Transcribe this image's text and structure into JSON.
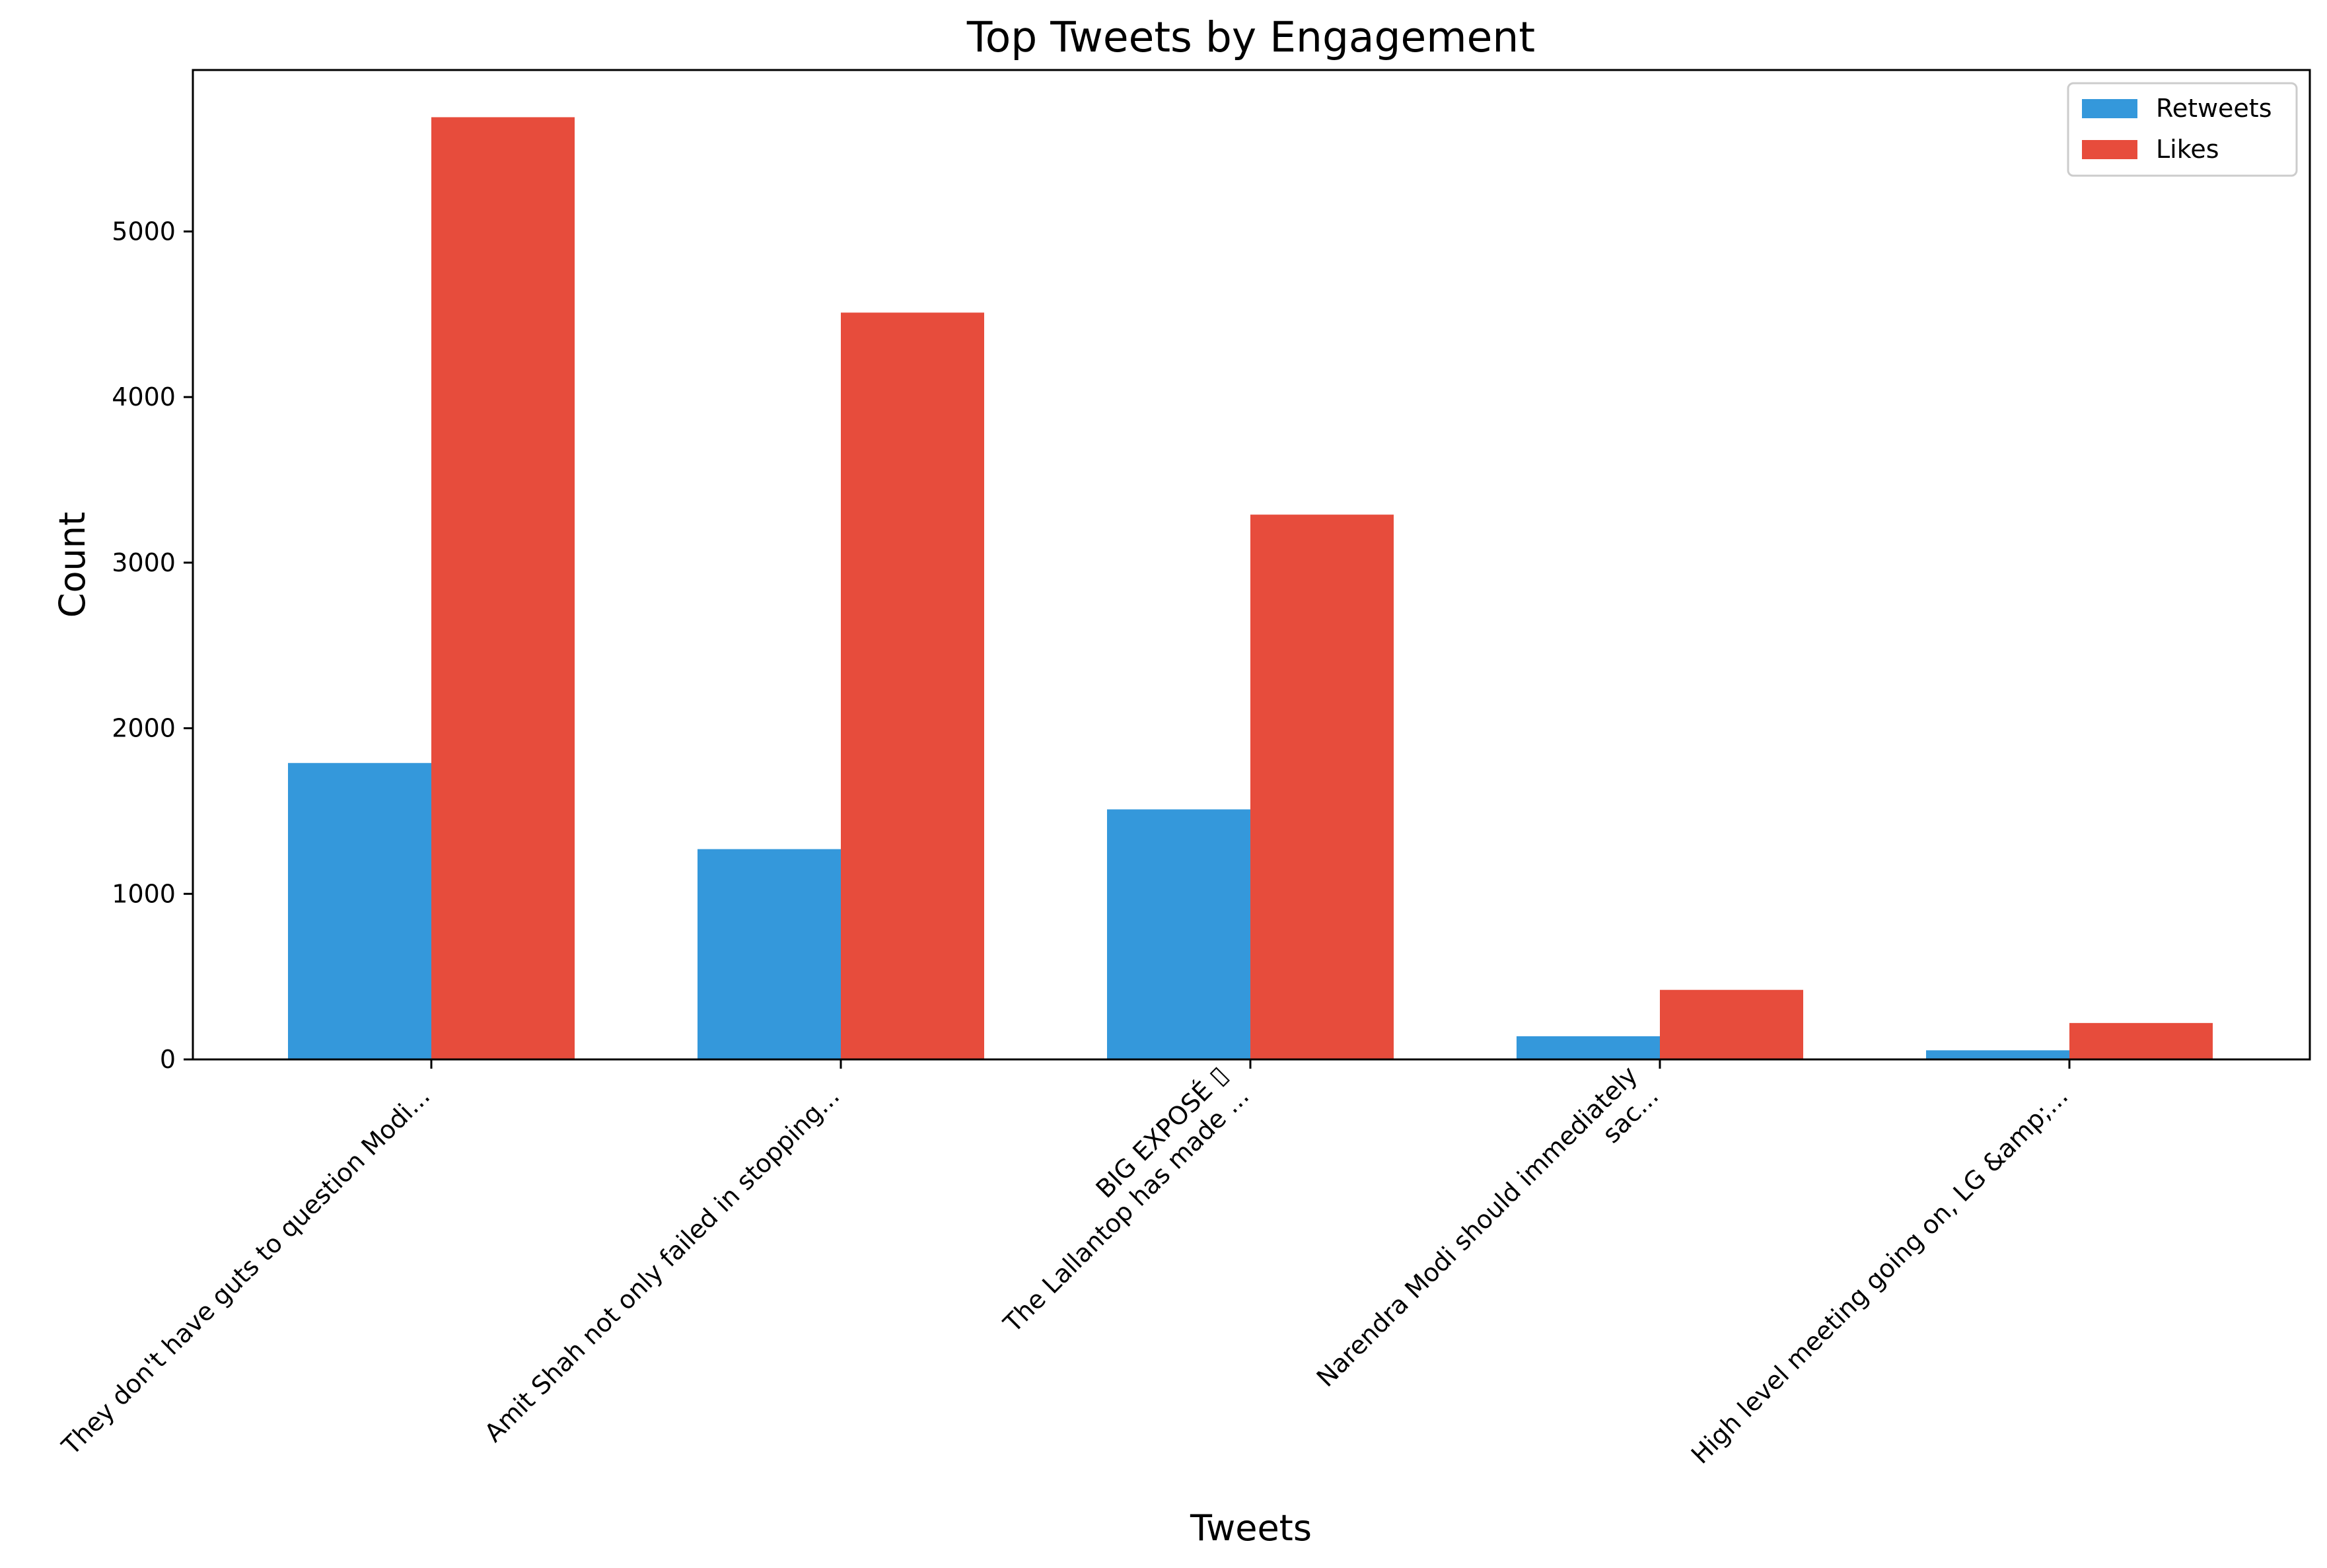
{
  "chart_data": {
    "type": "bar",
    "title": "Top Tweets by Engagement",
    "xlabel": "Tweets",
    "ylabel": "Count",
    "ylim": [
      0,
      6000
    ],
    "yticks": [
      0,
      1000,
      2000,
      3000,
      4000,
      5000
    ],
    "categories": [
      [
        "They don't have guts to question Modi..."
      ],
      [
        "Amit Shah not only failed in stopping..."
      ],
      [
        "BIG EXPOSÉ ▯",
        "The Lallantop has made ..."
      ],
      [
        "Narendra Modi should immediately",
        "sac..."
      ],
      [
        "High level meeting going on, LG &amp;..."
      ]
    ],
    "series": [
      {
        "name": "Retweets",
        "color": "#3498db",
        "values": [
          1790,
          1270,
          1510,
          140,
          55
        ]
      },
      {
        "name": "Likes",
        "color": "#e74c3c",
        "values": [
          5690,
          4510,
          3290,
          420,
          220
        ]
      }
    ],
    "legend_position": "upper right",
    "grid": false
  }
}
